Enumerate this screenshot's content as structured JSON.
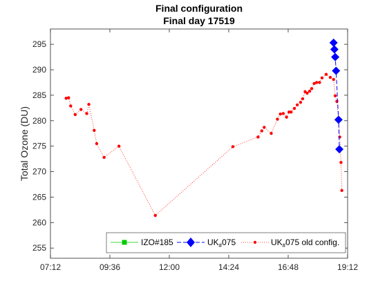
{
  "chart_data": {
    "type": "line",
    "title": "Final configuration",
    "subtitle": "Final day 17519",
    "xlabel": "",
    "ylabel": "Total Ozone (DU)",
    "xlim": [
      "07:12",
      "19:12"
    ],
    "ylim": [
      253,
      298
    ],
    "x_ticks": [
      "07:12",
      "09:36",
      "12:00",
      "14:24",
      "16:48",
      "19:12"
    ],
    "y_ticks": [
      255,
      260,
      265,
      270,
      275,
      280,
      285,
      290,
      295
    ],
    "grid": false,
    "legend_position": "bottom-right",
    "legend": [
      {
        "label": "IZO#185",
        "marker": "square",
        "line": "solid",
        "color": "#00cc00"
      },
      {
        "label_main": "UK",
        "label_sub": "#",
        "label_tail": "075",
        "marker": "diamond",
        "line": "dashed",
        "color": "#0000ff"
      },
      {
        "label_main": "UK",
        "label_sub": "#",
        "label_tail": "075 old config.",
        "marker": "dot",
        "line": "dotted",
        "color": "#ff0000"
      }
    ],
    "series": [
      {
        "name": "IZO#185",
        "color": "#00cc00",
        "x": [],
        "y": []
      },
      {
        "name": "UK#075",
        "color": "#0000ff",
        "x": [
          "18:38",
          "18:40",
          "18:42",
          "18:44",
          "18:50",
          "18:52"
        ],
        "y": [
          295.3,
          294.0,
          292.5,
          289.8,
          280.2,
          274.4
        ]
      },
      {
        "name": "UK#075 old config.",
        "color": "#ff0000",
        "x": [
          "07:50",
          "07:56",
          "08:01",
          "08:12",
          "08:26",
          "08:40",
          "08:45",
          "08:58",
          "09:04",
          "09:22",
          "09:58",
          "11:26",
          "14:34",
          "15:35",
          "15:44",
          "15:50",
          "16:07",
          "16:22",
          "16:29",
          "16:36",
          "16:44",
          "16:50",
          "16:55",
          "17:03",
          "17:10",
          "17:18",
          "17:23",
          "17:29",
          "17:34",
          "17:40",
          "17:45",
          "17:51",
          "17:57",
          "18:04",
          "18:10",
          "18:20",
          "18:30",
          "18:38",
          "18:42",
          "18:46",
          "18:50",
          "18:53",
          "18:56",
          "18:58"
        ],
        "y": [
          284.4,
          284.5,
          282.9,
          281.2,
          282.2,
          281.4,
          283.2,
          278.1,
          275.5,
          272.8,
          275.0,
          261.4,
          274.9,
          276.8,
          278.0,
          278.7,
          277.5,
          280.3,
          281.3,
          281.4,
          280.7,
          281.7,
          281.7,
          282.4,
          283.1,
          283.6,
          284.3,
          285.7,
          285.4,
          285.8,
          286.3,
          287.3,
          287.5,
          287.5,
          288.4,
          289.1,
          288.5,
          288.1,
          284.9,
          283.8,
          280.4,
          276.8,
          271.8,
          266.3
        ]
      }
    ]
  }
}
